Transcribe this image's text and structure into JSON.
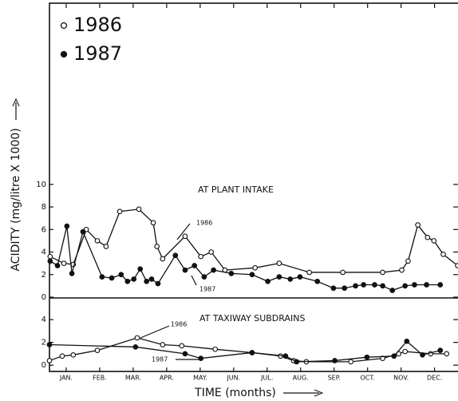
{
  "chart_data": [
    {
      "type": "line",
      "ylabel": "ACIDITY (mg/litre X 1000)",
      "annotations": [
        "AT PLANT INTAKE",
        "1986",
        "1987"
      ],
      "xlim": [
        0,
        12.2
      ],
      "ylim": [
        0,
        26
      ],
      "yticks": [
        0,
        2,
        4,
        6,
        8,
        10
      ],
      "series": [
        {
          "name": "1986",
          "color": "#111111",
          "marker": "open",
          "x": [
            0.02,
            0.43,
            0.71,
            1.1,
            1.43,
            1.69,
            2.1,
            2.67,
            3.1,
            3.21,
            3.38,
            4.05,
            4.52,
            4.83,
            5.24,
            6.14,
            6.86,
            7.76,
            8.76,
            9.95,
            10.52,
            10.71,
            11.0,
            11.29,
            11.48,
            11.76,
            12.19
          ],
          "values": [
            3.6,
            3.0,
            2.9,
            6.0,
            5.0,
            4.5,
            7.6,
            7.8,
            6.6,
            4.5,
            3.4,
            5.4,
            3.6,
            4.0,
            2.4,
            2.6,
            3.0,
            2.2,
            2.2,
            2.2,
            2.4,
            3.2,
            6.4,
            5.3,
            5.0,
            3.8,
            2.8
          ]
        },
        {
          "name": "1987",
          "color": "#111111",
          "marker": "filled",
          "x": [
            0.02,
            0.24,
            0.52,
            0.67,
            1.0,
            1.57,
            1.86,
            2.14,
            2.33,
            2.52,
            2.71,
            2.9,
            3.05,
            3.24,
            3.76,
            4.05,
            4.33,
            4.62,
            4.9,
            5.43,
            6.05,
            6.52,
            6.86,
            7.19,
            7.48,
            8.0,
            8.48,
            8.81,
            9.14,
            9.38,
            9.71,
            9.95,
            10.24,
            10.62,
            10.9,
            11.26,
            11.67
          ],
          "values": [
            3.2,
            2.8,
            6.3,
            2.1,
            5.8,
            1.8,
            1.7,
            2.0,
            1.4,
            1.6,
            2.5,
            1.4,
            1.6,
            1.2,
            3.7,
            2.4,
            2.8,
            1.8,
            2.4,
            2.1,
            2.0,
            1.4,
            1.8,
            1.6,
            1.8,
            1.4,
            0.8,
            0.8,
            1.0,
            1.1,
            1.1,
            1.0,
            0.6,
            1.0,
            1.1,
            1.1,
            1.1
          ]
        }
      ]
    },
    {
      "type": "line",
      "xlabel": "TIME (months)",
      "annotations": [
        "AT TAXIWAY SUBDRAINS",
        "1986",
        "1987"
      ],
      "xlim": [
        0,
        12.2
      ],
      "ylim": [
        -0.55,
        5.9
      ],
      "yticks": [
        0,
        2,
        4
      ],
      "xticks": [
        {
          "value": 0.5,
          "label": "JAN."
        },
        {
          "value": 1.5,
          "label": "FEB."
        },
        {
          "value": 2.5,
          "label": "MAR."
        },
        {
          "value": 3.5,
          "label": "APR."
        },
        {
          "value": 4.5,
          "label": "MAY."
        },
        {
          "value": 5.5,
          "label": "JUN."
        },
        {
          "value": 6.5,
          "label": "JUL."
        },
        {
          "value": 7.5,
          "label": "AUG."
        },
        {
          "value": 8.5,
          "label": "SEP."
        },
        {
          "value": 9.5,
          "label": "OCT."
        },
        {
          "value": 10.5,
          "label": "NOV."
        },
        {
          "value": 11.5,
          "label": "DEC."
        }
      ],
      "series": [
        {
          "name": "1986",
          "color": "#111111",
          "marker": "open",
          "x": [
            0,
            0.38,
            0.71,
            1.43,
            2.62,
            3.38,
            3.95,
            4.95,
            6.05,
            6.9,
            7.29,
            7.67,
            9.0,
            9.95,
            10.43,
            10.62,
            11.38,
            11.86
          ],
          "values": [
            0.4,
            0.8,
            0.9,
            1.3,
            2.4,
            1.8,
            1.7,
            1.4,
            1.1,
            0.8,
            0.4,
            0.3,
            0.3,
            0.6,
            1.0,
            1.2,
            1.0,
            1.0
          ]
        },
        {
          "name": "1987",
          "color": "#111111",
          "marker": "filled",
          "x": [
            0,
            2.57,
            4.05,
            4.52,
            6.05,
            7.05,
            7.38,
            8.52,
            9.48,
            10.29,
            10.67,
            11.14,
            11.67
          ],
          "values": [
            1.8,
            1.6,
            1.0,
            0.6,
            1.1,
            0.8,
            0.3,
            0.4,
            0.7,
            0.8,
            2.1,
            0.9,
            1.3
          ]
        }
      ]
    }
  ]
}
